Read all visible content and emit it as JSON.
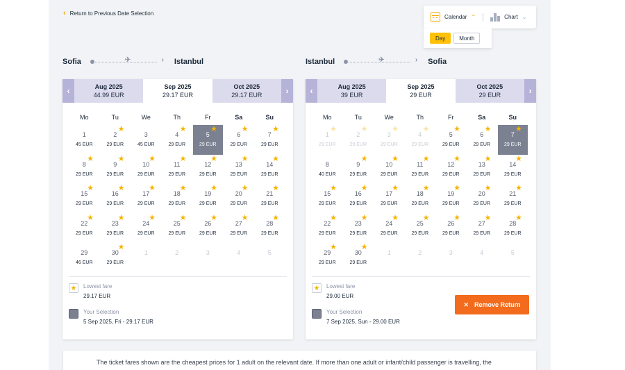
{
  "back_link": {
    "label": "Return to Previous Date Selection"
  },
  "view_toggle": {
    "calendar_label": "Calendar",
    "chart_label": "Chart",
    "day_label": "Day",
    "month_label": "Month"
  },
  "outbound": {
    "from": "Sofia",
    "to": "Istanbul",
    "tabs": [
      {
        "month": "Aug 2025",
        "price": "44.99 EUR"
      },
      {
        "month": "Sep 2025",
        "price": "29.17 EUR"
      },
      {
        "month": "Oct 2025",
        "price": "29.17 EUR"
      }
    ],
    "active_tab": 1,
    "weekdays": [
      "Mo",
      "Tu",
      "We",
      "Th",
      "Fr",
      "Sa",
      "Su"
    ],
    "days": [
      {
        "d": "1",
        "p": "45 EUR",
        "star": false
      },
      {
        "d": "2",
        "p": "29 EUR",
        "star": true
      },
      {
        "d": "3",
        "p": "45 EUR",
        "star": false
      },
      {
        "d": "4",
        "p": "29 EUR",
        "star": true
      },
      {
        "d": "5",
        "p": "29 EUR",
        "star": true,
        "selected": true
      },
      {
        "d": "6",
        "p": "29 EUR",
        "star": true
      },
      {
        "d": "7",
        "p": "29 EUR",
        "star": true
      },
      {
        "d": "8",
        "p": "29 EUR",
        "star": true
      },
      {
        "d": "9",
        "p": "29 EUR",
        "star": true
      },
      {
        "d": "10",
        "p": "29 EUR",
        "star": true
      },
      {
        "d": "11",
        "p": "29 EUR",
        "star": true
      },
      {
        "d": "12",
        "p": "29 EUR",
        "star": true
      },
      {
        "d": "13",
        "p": "29 EUR",
        "star": true
      },
      {
        "d": "14",
        "p": "29 EUR",
        "star": true
      },
      {
        "d": "15",
        "p": "29 EUR",
        "star": true
      },
      {
        "d": "16",
        "p": "29 EUR",
        "star": true
      },
      {
        "d": "17",
        "p": "29 EUR",
        "star": true
      },
      {
        "d": "18",
        "p": "29 EUR",
        "star": true
      },
      {
        "d": "19",
        "p": "29 EUR",
        "star": true
      },
      {
        "d": "20",
        "p": "29 EUR",
        "star": true
      },
      {
        "d": "21",
        "p": "29 EUR",
        "star": true
      },
      {
        "d": "22",
        "p": "29 EUR",
        "star": true
      },
      {
        "d": "23",
        "p": "29 EUR",
        "star": true
      },
      {
        "d": "24",
        "p": "29 EUR",
        "star": true
      },
      {
        "d": "25",
        "p": "29 EUR",
        "star": true
      },
      {
        "d": "26",
        "p": "29 EUR",
        "star": true
      },
      {
        "d": "27",
        "p": "29 EUR",
        "star": true
      },
      {
        "d": "28",
        "p": "29 EUR",
        "star": true
      },
      {
        "d": "29",
        "p": "46 EUR",
        "star": false
      },
      {
        "d": "30",
        "p": "29 EUR",
        "star": true
      },
      {
        "d": "1",
        "p": "",
        "empty": true
      },
      {
        "d": "2",
        "p": "",
        "empty": true
      },
      {
        "d": "3",
        "p": "",
        "empty": true
      },
      {
        "d": "4",
        "p": "",
        "empty": true
      },
      {
        "d": "5",
        "p": "",
        "empty": true
      }
    ],
    "legend": {
      "lowest_label": "Lowest fare",
      "lowest_value": "29.17 EUR",
      "selection_label": "Your Selection",
      "selection_value": "5 Sep 2025, Fri - 29.17 EUR"
    }
  },
  "return": {
    "from": "Istanbul",
    "to": "Sofia",
    "tabs": [
      {
        "month": "Aug 2025",
        "price": "39 EUR"
      },
      {
        "month": "Sep 2025",
        "price": "29 EUR"
      },
      {
        "month": "Oct 2025",
        "price": "29 EUR"
      }
    ],
    "active_tab": 1,
    "weekdays": [
      "Mo",
      "Tu",
      "We",
      "Th",
      "Fr",
      "Sa",
      "Su"
    ],
    "days": [
      {
        "d": "1",
        "p": "29 EUR",
        "star": true,
        "faded": true
      },
      {
        "d": "2",
        "p": "29 EUR",
        "star": true,
        "faded": true
      },
      {
        "d": "3",
        "p": "29 EUR",
        "star": true,
        "faded": true
      },
      {
        "d": "4",
        "p": "29 EUR",
        "star": true,
        "faded": true
      },
      {
        "d": "5",
        "p": "29 EUR",
        "star": true
      },
      {
        "d": "6",
        "p": "29 EUR",
        "star": true
      },
      {
        "d": "7",
        "p": "29 EUR",
        "star": true,
        "selected": true
      },
      {
        "d": "8",
        "p": "40 EUR",
        "star": false
      },
      {
        "d": "9",
        "p": "29 EUR",
        "star": true
      },
      {
        "d": "10",
        "p": "29 EUR",
        "star": true
      },
      {
        "d": "11",
        "p": "29 EUR",
        "star": true
      },
      {
        "d": "12",
        "p": "29 EUR",
        "star": true
      },
      {
        "d": "13",
        "p": "29 EUR",
        "star": true
      },
      {
        "d": "14",
        "p": "29 EUR",
        "star": true
      },
      {
        "d": "15",
        "p": "29 EUR",
        "star": true
      },
      {
        "d": "16",
        "p": "29 EUR",
        "star": true
      },
      {
        "d": "17",
        "p": "29 EUR",
        "star": true
      },
      {
        "d": "18",
        "p": "29 EUR",
        "star": true
      },
      {
        "d": "19",
        "p": "29 EUR",
        "star": true
      },
      {
        "d": "20",
        "p": "29 EUR",
        "star": true
      },
      {
        "d": "21",
        "p": "29 EUR",
        "star": true
      },
      {
        "d": "22",
        "p": "29 EUR",
        "star": true
      },
      {
        "d": "23",
        "p": "29 EUR",
        "star": true
      },
      {
        "d": "24",
        "p": "29 EUR",
        "star": true
      },
      {
        "d": "25",
        "p": "29 EUR",
        "star": true
      },
      {
        "d": "26",
        "p": "29 EUR",
        "star": true
      },
      {
        "d": "27",
        "p": "29 EUR",
        "star": true
      },
      {
        "d": "28",
        "p": "29 EUR",
        "star": true
      },
      {
        "d": "29",
        "p": "29 EUR",
        "star": true
      },
      {
        "d": "30",
        "p": "29 EUR",
        "star": true
      },
      {
        "d": "1",
        "p": "",
        "empty": true
      },
      {
        "d": "2",
        "p": "",
        "empty": true
      },
      {
        "d": "3",
        "p": "",
        "empty": true
      },
      {
        "d": "4",
        "p": "",
        "empty": true
      },
      {
        "d": "5",
        "p": "",
        "empty": true
      }
    ],
    "legend": {
      "lowest_label": "Lowest fare",
      "lowest_value": "29.00 EUR",
      "selection_label": "Your Selection",
      "selection_value": "7 Sep 2025, Sun - 29.00 EUR"
    },
    "remove_button": "Remove Return"
  },
  "info": {
    "text": "The ticket fares shown are the cheapest prices for 1 adult on the relevant date. If more than one adult or infant/child passenger is travelling, the"
  },
  "icons": {
    "back": "chevron-left-icon",
    "calendar": "calendar-icon",
    "chart": "bar-chart-icon",
    "star": "star-icon",
    "plane": "plane-icon",
    "close": "close-icon"
  },
  "colors": {
    "accent": "#f5a800",
    "tab_bg": "#dcdbee",
    "nav_bg": "#b6b3d9",
    "selected": "#7b8191",
    "remove": "#f36b1c"
  }
}
